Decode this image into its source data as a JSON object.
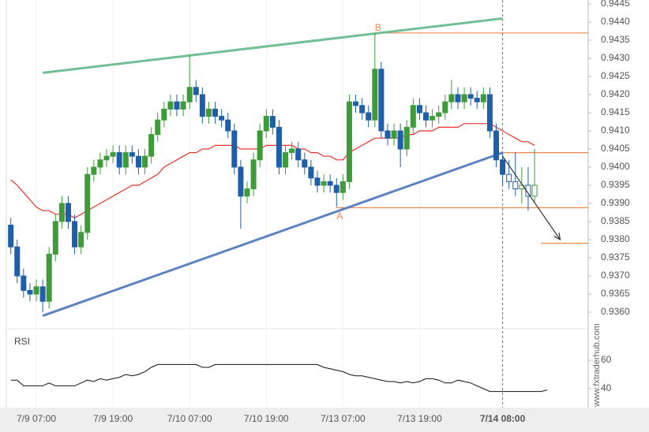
{
  "chart_data": {
    "type": "candlestick",
    "categories": [
      null,
      null,
      null,
      null,
      "7/9 07:00",
      null,
      null,
      null,
      null,
      null,
      null,
      null,
      null,
      null,
      null,
      null,
      "7/9 19:00",
      null,
      null,
      null,
      null,
      null,
      null,
      null,
      null,
      null,
      null,
      null,
      "7/10 07:00",
      null,
      null,
      null,
      null,
      null,
      null,
      null,
      null,
      null,
      null,
      null,
      "7/10 19:00",
      null,
      null,
      null,
      null,
      null,
      null,
      null,
      null,
      null,
      null,
      null,
      "7/13 07:00",
      null,
      null,
      null,
      null,
      null,
      null,
      null,
      null,
      null,
      null,
      null,
      "7/13 19:00",
      null,
      null,
      null,
      null,
      null,
      null,
      null,
      null,
      null,
      null,
      null,
      null,
      "7/14 08:00",
      null,
      null,
      null,
      null,
      null
    ],
    "open": [
      0.9384,
      0.9378,
      0.937,
      0.9366,
      0.9365,
      0.9367,
      0.9363,
      0.9376,
      0.9385,
      0.939,
      0.9385,
      0.9378,
      0.9382,
      0.9398,
      0.94,
      0.9402,
      0.9403,
      0.9404,
      0.94,
      0.9404,
      0.9403,
      0.94,
      0.9403,
      0.9409,
      0.9413,
      0.9416,
      0.9418,
      0.9416,
      0.9418,
      0.9422,
      0.942,
      0.9414,
      0.9416,
      0.9414,
      0.9413,
      0.941,
      0.94,
      0.9392,
      0.9394,
      0.9402,
      0.941,
      0.9414,
      0.9411,
      0.94,
      0.9404,
      0.9405,
      0.9402,
      0.94,
      0.9397,
      0.9395,
      0.9396,
      0.9395,
      0.9393,
      0.9396,
      0.9418,
      0.9417,
      0.9415,
      0.9413,
      0.9427,
      0.941,
      0.9408,
      0.941,
      0.9405,
      0.9411,
      0.9417,
      0.9415,
      0.9413,
      0.9414,
      0.9415,
      0.9418,
      0.942,
      0.9418,
      0.942,
      0.9419,
      0.9418,
      0.942,
      0.941,
      0.9402,
      0.9398,
      0.9396,
      0.9394,
      0.9395,
      0.9392
    ],
    "high": [
      0.9386,
      0.938,
      0.9372,
      0.9368,
      0.9369,
      0.9369,
      0.9378,
      0.9387,
      0.9392,
      0.9392,
      0.9387,
      0.9384,
      0.94,
      0.9402,
      0.9404,
      0.9405,
      0.9406,
      0.9406,
      0.9406,
      0.9406,
      0.9405,
      0.9405,
      0.9411,
      0.9415,
      0.9418,
      0.942,
      0.942,
      0.942,
      0.9431,
      0.9424,
      0.9422,
      0.9418,
      0.9418,
      0.9416,
      0.9415,
      0.9412,
      0.9402,
      0.9396,
      0.9404,
      0.9412,
      0.9416,
      0.9416,
      0.9413,
      0.9406,
      0.9407,
      0.9407,
      0.9404,
      0.9402,
      0.9399,
      0.9398,
      0.9398,
      0.9397,
      0.9398,
      0.942,
      0.942,
      0.9419,
      0.9417,
      0.9437,
      0.9429,
      0.9412,
      0.9412,
      0.9412,
      0.9413,
      0.9419,
      0.9419,
      0.9417,
      0.9416,
      0.9417,
      0.942,
      0.9424,
      0.9422,
      0.9422,
      0.9422,
      0.9421,
      0.9422,
      0.9422,
      0.9412,
      0.9404,
      0.9402,
      0.9404,
      0.94,
      0.94,
      0.9405
    ],
    "low": [
      0.9376,
      0.9368,
      0.9364,
      0.9363,
      0.9363,
      0.936,
      0.9361,
      0.9374,
      0.9383,
      0.9383,
      0.9376,
      0.9376,
      0.938,
      0.9396,
      0.9398,
      0.94,
      0.9401,
      0.9398,
      0.9398,
      0.9401,
      0.9398,
      0.9398,
      0.9401,
      0.9407,
      0.9411,
      0.9414,
      0.9414,
      0.9414,
      0.9416,
      0.9418,
      0.9412,
      0.9412,
      0.9412,
      0.9411,
      0.9408,
      0.9398,
      0.9383,
      0.939,
      0.9392,
      0.94,
      0.9408,
      0.9409,
      0.9398,
      0.9398,
      0.9402,
      0.94,
      0.9398,
      0.9395,
      0.9393,
      0.9393,
      0.9393,
      0.9389,
      0.9391,
      0.9394,
      0.9415,
      0.9413,
      0.9411,
      0.9411,
      0.9408,
      0.9406,
      0.9406,
      0.94,
      0.9403,
      0.9409,
      0.9413,
      0.9411,
      0.9411,
      0.9412,
      0.9413,
      0.9416,
      0.9416,
      0.9416,
      0.9417,
      0.9416,
      0.9416,
      0.9408,
      0.94,
      0.9395,
      0.9394,
      0.9392,
      0.939,
      0.9388,
      0.939
    ],
    "close": [
      0.9378,
      0.937,
      0.9366,
      0.9365,
      0.9367,
      0.9363,
      0.9376,
      0.9385,
      0.939,
      0.9385,
      0.9378,
      0.9382,
      0.9398,
      0.94,
      0.9402,
      0.9403,
      0.9404,
      0.94,
      0.9404,
      0.9403,
      0.94,
      0.9403,
      0.9409,
      0.9413,
      0.9416,
      0.9418,
      0.9416,
      0.9418,
      0.9422,
      0.942,
      0.9414,
      0.9416,
      0.9414,
      0.9413,
      0.941,
      0.94,
      0.9392,
      0.9394,
      0.9402,
      0.941,
      0.9414,
      0.9411,
      0.94,
      0.9404,
      0.9405,
      0.9402,
      0.94,
      0.9397,
      0.9395,
      0.9396,
      0.9395,
      0.9393,
      0.9396,
      0.9418,
      0.9417,
      0.9415,
      0.9413,
      0.9427,
      0.941,
      0.9408,
      0.941,
      0.9405,
      0.9411,
      0.9417,
      0.9415,
      0.9413,
      0.9414,
      0.9415,
      0.9418,
      0.942,
      0.9418,
      0.942,
      0.9419,
      0.9418,
      0.942,
      0.941,
      0.9402,
      0.9398,
      0.9396,
      0.9394,
      0.9395,
      0.9392,
      0.9395
    ],
    "up_color": "#3f9b3a",
    "down_color": "#1f5ea8",
    "ma": {
      "color": "#e8332a",
      "values": [
        0.93965,
        0.9395,
        0.9393,
        0.9391,
        0.9389,
        0.9388,
        0.9388,
        0.9387,
        0.9387,
        0.9387,
        0.9386,
        0.9387,
        0.9388,
        0.9389,
        0.939,
        0.9391,
        0.9392,
        0.9393,
        0.9394,
        0.9395,
        0.9395,
        0.9396,
        0.9397,
        0.9398,
        0.94,
        0.9401,
        0.9402,
        0.9403,
        0.9404,
        0.9404,
        0.9405,
        0.9405,
        0.9406,
        0.9406,
        0.9406,
        0.9406,
        0.9405,
        0.9405,
        0.9405,
        0.9405,
        0.9406,
        0.9406,
        0.9406,
        0.9406,
        0.9406,
        0.9405,
        0.9405,
        0.9404,
        0.9404,
        0.9403,
        0.9403,
        0.9402,
        0.9402,
        0.9404,
        0.9405,
        0.9406,
        0.9407,
        0.9408,
        0.9408,
        0.9408,
        0.9408,
        0.9408,
        0.9409,
        0.9409,
        0.941,
        0.941,
        0.941,
        0.9411,
        0.9411,
        0.9411,
        0.9411,
        0.9412,
        0.9412,
        0.9412,
        0.9412,
        0.9412,
        0.9411,
        0.941,
        0.9409,
        0.9408,
        0.9407,
        0.9407,
        0.9406
      ]
    },
    "xlim": [
      -0.7,
      90.4
    ],
    "ylim": [
      0.9356,
      0.9446
    ],
    "yticks": [
      0.9445,
      {
        "value": 0.944,
        "label": "0.9440"
      },
      0.9435,
      {
        "value": 0.943,
        "label": "0.9430"
      },
      0.9425,
      {
        "value": 0.942,
        "label": "0.9420"
      },
      0.9415,
      {
        "value": 0.941,
        "label": "0.9410"
      },
      0.9405,
      {
        "value": 0.94,
        "label": "0.9400"
      },
      0.9395,
      {
        "value": 0.939,
        "label": "0.9390"
      },
      0.9385,
      {
        "value": 0.938,
        "label": "0.9380"
      },
      0.9375,
      {
        "value": 0.937,
        "label": "0.9370"
      },
      0.9365,
      {
        "value": 0.936,
        "label": "0.9360"
      }
    ],
    "trendlines": [
      {
        "from": [
          5,
          0.9426
        ],
        "to": [
          77,
          0.9441
        ],
        "color": "#72bf95"
      },
      {
        "from": [
          5,
          0.9359
        ],
        "to": [
          77,
          0.9404
        ],
        "color": "#5b82c2"
      }
    ],
    "levels": [
      {
        "value": 0.9437,
        "from": 57
      },
      {
        "value": 0.9404,
        "from": 77
      },
      {
        "value": 0.93888,
        "from": 51
      },
      {
        "value": 0.9379,
        "from": 83
      }
    ],
    "level_color": "#f0884a",
    "points": [
      {
        "label": "A",
        "index": 51
      },
      {
        "label": "B",
        "index": 57
      }
    ],
    "forecast": {
      "from": [
        77,
        0.9403
      ],
      "to": [
        86,
        0.938
      ]
    },
    "current": 77,
    "rsi": {
      "title": "RSI",
      "values": [
        46,
        46,
        42,
        42,
        42,
        42,
        44,
        42,
        42,
        42,
        42,
        44,
        46,
        45,
        47,
        46,
        47,
        48,
        50,
        49,
        50,
        52,
        55,
        57,
        57,
        57,
        57,
        57,
        57,
        57,
        55,
        55,
        57,
        57,
        57,
        57,
        57,
        57,
        57,
        57,
        57,
        57,
        57,
        57,
        57,
        57,
        57,
        57,
        57,
        55,
        54,
        53,
        52,
        50,
        49,
        49,
        48,
        47,
        46,
        45,
        45,
        44,
        45,
        44,
        45,
        47,
        47,
        46,
        44,
        44,
        46,
        45,
        44,
        42,
        40,
        38,
        38,
        38,
        38,
        38,
        38,
        38,
        38,
        38,
        39
      ],
      "ylim": [
        30,
        80
      ],
      "yticks": [
        60,
        40
      ]
    },
    "watermark": "www.fxtraderhub.com"
  }
}
